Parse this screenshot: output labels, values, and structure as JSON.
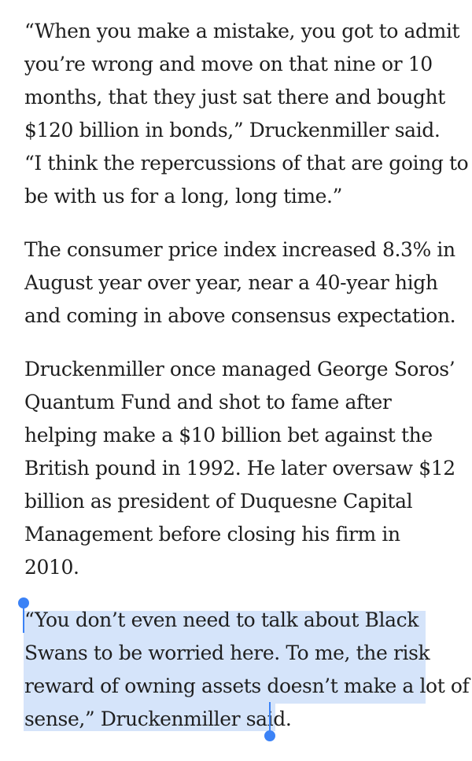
{
  "paragraphs": [
    {
      "lines": [
        "“When you make a mistake, you got to admit",
        "you’re wrong and move on that nine or 10",
        "months, that they just sat there and bought",
        "$120 billion in bonds,” Druckenmiller said.",
        "“I think the repercussions of that are going to",
        "be with us for a long, long time.”"
      ]
    },
    {
      "lines": [
        "The consumer price index increased 8.3% in",
        "August year over year, near a 40-year high",
        "and coming in above consensus expectation."
      ]
    },
    {
      "lines": [
        "Druckenmiller once managed George Soros’",
        "Quantum Fund and shot to fame after",
        "helping make a $10 billion bet against the",
        "British pound in 1992. He later oversaw $12",
        "billion as president of Duquesne Capital",
        "Management before closing his firm in",
        "2010."
      ]
    },
    {
      "lines": [
        "“You don’t even need to talk about Black",
        "Swans to be worried here. To me, the risk",
        "reward of owning assets doesn’t make a lot of",
        "sense,” Druckenmiller said."
      ]
    }
  ],
  "selection": {
    "highlight_color": "#d5e4fa",
    "handle_color": "#3b82f6"
  }
}
